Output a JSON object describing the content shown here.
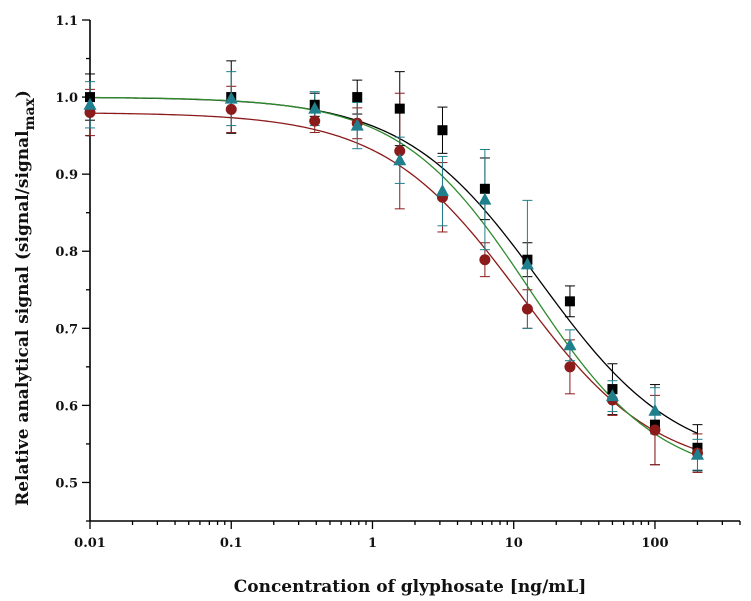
{
  "chart_data": {
    "type": "scatter",
    "title": "",
    "xlabel": "Concentration of glyphosate [ng/mL]",
    "ylabel": "Relative analytical signal (signal/signal",
    "ylabel_subscript": "max",
    "ylabel_close": ")",
    "xscale": "log",
    "xlim": [
      0.01,
      400
    ],
    "ylim": [
      0.45,
      1.1
    ],
    "grid": false,
    "legend": "none",
    "x_ticks": [
      {
        "value": 0.01,
        "label": "0.01"
      },
      {
        "value": 0.1,
        "label": "0.1"
      },
      {
        "value": 1,
        "label": "1"
      },
      {
        "value": 10,
        "label": "10"
      },
      {
        "value": 100,
        "label": "100"
      }
    ],
    "y_ticks": [
      {
        "value": 0.5,
        "label": "0.5"
      },
      {
        "value": 0.6,
        "label": "0.6"
      },
      {
        "value": 0.7,
        "label": "0.7"
      },
      {
        "value": 0.8,
        "label": "0.8"
      },
      {
        "value": 0.9,
        "label": "0.9"
      },
      {
        "value": 1.0,
        "label": "1.0"
      },
      {
        "value": 1.1,
        "label": "1.1"
      }
    ],
    "x": [
      0.01,
      0.1,
      0.39,
      0.78,
      1.56,
      3.13,
      6.25,
      12.5,
      25,
      50,
      100,
      200
    ],
    "series": [
      {
        "marker": "square",
        "color": "#000000",
        "fit_color": "#000000",
        "values": [
          1.0,
          1.0,
          0.99,
          1.0,
          0.985,
          0.957,
          0.881,
          0.789,
          0.735,
          0.621,
          0.575,
          0.545
        ],
        "errors": [
          0.03,
          0.047,
          0.015,
          0.022,
          0.048,
          0.03,
          0.04,
          0.022,
          0.02,
          0.033,
          0.052,
          0.03
        ]
      },
      {
        "marker": "circle",
        "color": "#8b1a1a",
        "fit_color": "#8b1a1a",
        "values": [
          0.98,
          0.984,
          0.969,
          0.966,
          0.93,
          0.87,
          0.789,
          0.725,
          0.65,
          0.607,
          0.568,
          0.538
        ],
        "errors": [
          0.03,
          0.03,
          0.015,
          0.02,
          0.075,
          0.045,
          0.022,
          0.025,
          0.035,
          0.02,
          0.045,
          0.025
        ]
      },
      {
        "marker": "triangle",
        "color": "#1f7f8c",
        "fit_color": "#2e8b2e",
        "values": [
          0.99,
          0.998,
          0.985,
          0.963,
          0.918,
          0.878,
          0.867,
          0.783,
          0.678,
          0.612,
          0.593,
          0.536
        ],
        "errors": [
          0.03,
          0.035,
          0.022,
          0.03,
          0.03,
          0.045,
          0.065,
          0.083,
          0.02,
          0.02,
          0.03,
          0.02
        ]
      }
    ],
    "fits": [
      {
        "color": "#000000",
        "top": 1.0,
        "bottom": 0.52,
        "x0": 15.5,
        "p": 0.9
      },
      {
        "color": "#8b1a1a",
        "top": 0.98,
        "bottom": 0.51,
        "x0": 11.0,
        "p": 0.9
      },
      {
        "color": "#2e8b2e",
        "top": 1.0,
        "bottom": 0.5,
        "x0": 13.0,
        "p": 0.95
      }
    ]
  }
}
